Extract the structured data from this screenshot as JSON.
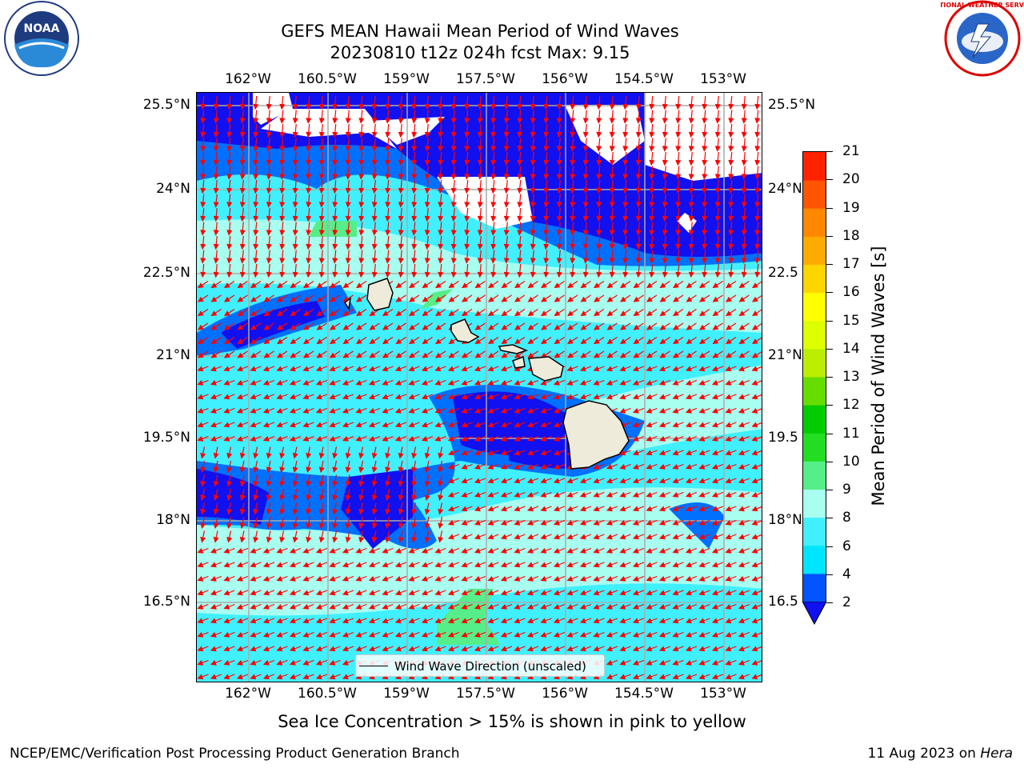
{
  "title": {
    "line1": "GEFS MEAN Hawaii Mean Period of Wind Waves",
    "line2": "20230810 t12z 024h fcst   Max: 9.15"
  },
  "lon_ticks": [
    "162°W",
    "160.5°W",
    "159°W",
    "157.5°W",
    "156°W",
    "154.5°W",
    "153°W"
  ],
  "lat_ticks": [
    "25.5°N",
    "24°N",
    "22.5°N",
    "21°N",
    "19.5°N",
    "18°N",
    "16.5°N"
  ],
  "lat_ticks_right": [
    "25.5°N",
    "24°N",
    "22.5",
    "21°N",
    "19.5",
    "18°N",
    "16.5"
  ],
  "legend": {
    "label": "Wind Wave Direction (unscaled)"
  },
  "colorbar": {
    "label": "Mean Period of Wind Waves [s]",
    "ticks": [
      "2",
      "4",
      "6",
      "8",
      "9",
      "10",
      "11",
      "12",
      "13",
      "14",
      "15",
      "16",
      "17",
      "18",
      "19",
      "20",
      "21"
    ],
    "colors": [
      "#0055ff",
      "#00e5ff",
      "#40f0ff",
      "#a8fff0",
      "#55ee88",
      "#22dd22",
      "#00cc00",
      "#66dd00",
      "#bbee00",
      "#ddff00",
      "#ffff00",
      "#ffd500",
      "#ffaa00",
      "#ff8800",
      "#ff5500",
      "#ff2200"
    ],
    "under_color": "#1010f0"
  },
  "subtitle": "Sea Ice Concentration > 15% is shown in pink to yellow",
  "footer": {
    "left": "NCEP/EMC/Verification Post Processing Product Generation Branch",
    "right_date": "11 Aug 2023 on ",
    "right_host": "Hera"
  },
  "logos": {
    "left": "NOAA",
    "right": "NATIONAL WEATHER SERVICE"
  }
}
